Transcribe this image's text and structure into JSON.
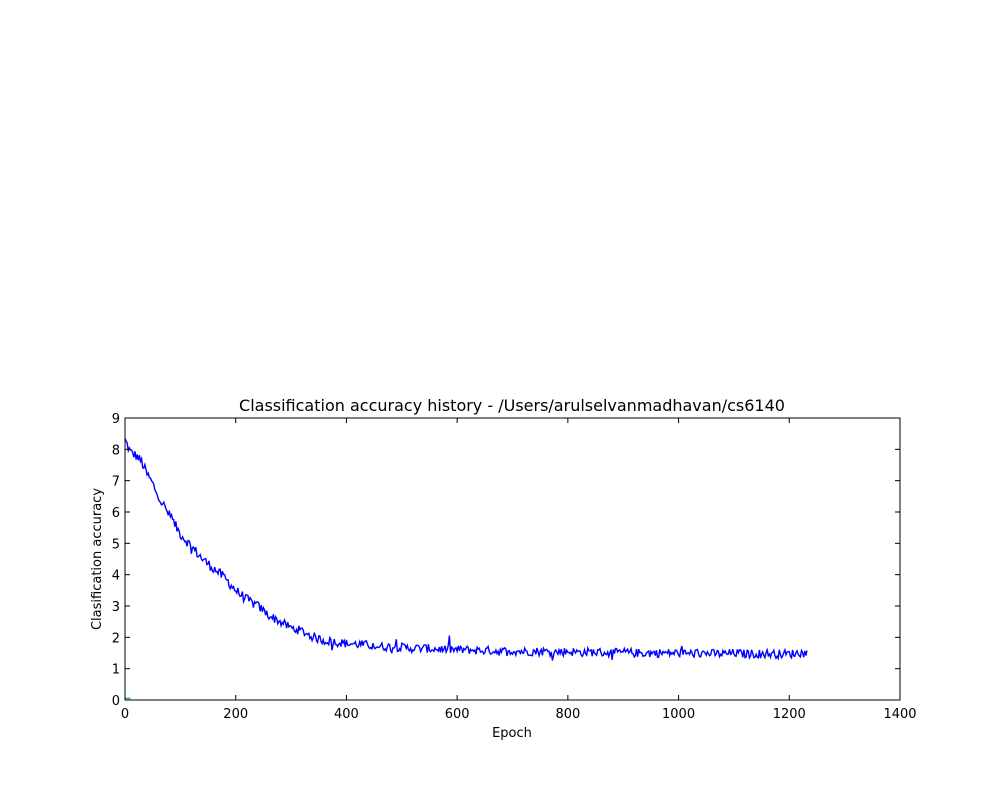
{
  "chart_data": {
    "type": "line",
    "title": "Classification accuracy history - /Users/arulselvanmadhavan/cs6140",
    "xlabel": "Epoch",
    "ylabel": "Clasification accuracy",
    "xlim": [
      0,
      1400
    ],
    "ylim": [
      0,
      9
    ],
    "xticks": [
      "0",
      "200",
      "400",
      "600",
      "800",
      "1000",
      "1200",
      "1400"
    ],
    "yticks": [
      "0",
      "1",
      "2",
      "3",
      "4",
      "5",
      "6",
      "7",
      "8",
      "9"
    ],
    "grid": false,
    "legend": "none",
    "series": [
      {
        "color": "#0000ff",
        "x": [
          0,
          10,
          20,
          30,
          40,
          50,
          60,
          70,
          80,
          90,
          100,
          120,
          140,
          160,
          180,
          200,
          220,
          240,
          260,
          280,
          300,
          320,
          340,
          360,
          380,
          400,
          420,
          440,
          460,
          480,
          500,
          520,
          540,
          560,
          580,
          600,
          620,
          640,
          660,
          680,
          700,
          720,
          740,
          760,
          780,
          800,
          820,
          840,
          860,
          880,
          900,
          920,
          940,
          960,
          980,
          1000,
          1020,
          1040,
          1060,
          1080,
          1100,
          1120,
          1140,
          1160,
          1180,
          1200,
          1220,
          1232
        ],
        "values": [
          8.3,
          7.9,
          7.8,
          7.6,
          7.2,
          6.9,
          6.5,
          6.2,
          5.9,
          5.6,
          5.3,
          4.9,
          4.5,
          4.2,
          3.9,
          3.5,
          3.2,
          3.0,
          2.7,
          2.5,
          2.3,
          2.2,
          2.0,
          1.9,
          1.85,
          1.8,
          1.78,
          1.75,
          1.7,
          1.7,
          1.68,
          1.65,
          1.65,
          1.63,
          1.62,
          1.6,
          1.6,
          1.58,
          1.58,
          1.55,
          1.57,
          1.55,
          1.55,
          1.55,
          1.53,
          1.55,
          1.52,
          1.53,
          1.52,
          1.5,
          1.52,
          1.5,
          1.5,
          1.5,
          1.5,
          1.5,
          1.48,
          1.5,
          1.48,
          1.47,
          1.5,
          1.47,
          1.48,
          1.48,
          1.47,
          1.47,
          1.5,
          1.5
        ]
      },
      {
        "color": "#00bfbf",
        "x": [
          0,
          10
        ],
        "values": [
          0.05,
          0.05
        ]
      }
    ]
  }
}
